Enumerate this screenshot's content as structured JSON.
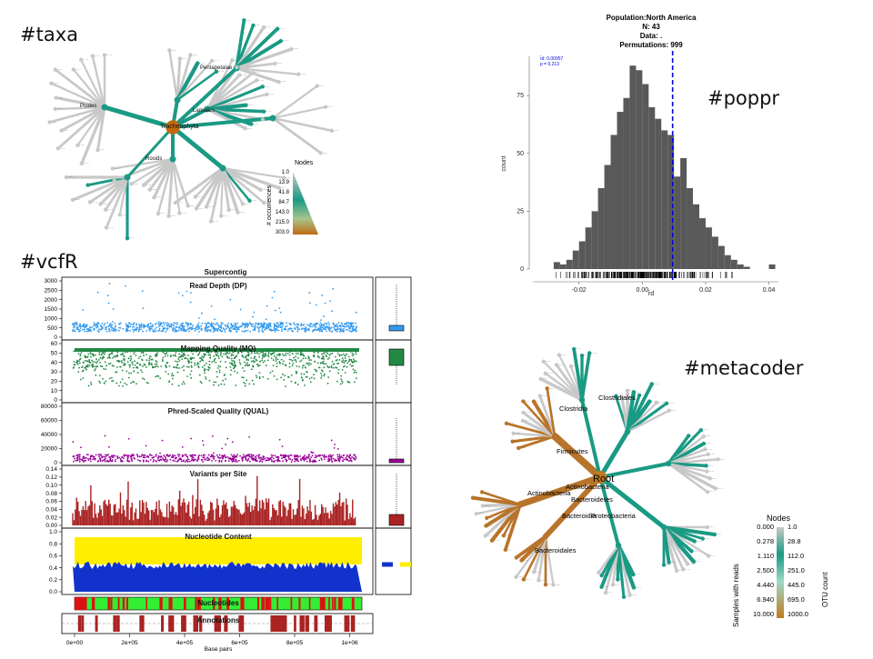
{
  "colors": {
    "taxa_low": "#c8c8c8",
    "taxa_mid": "#1a9a84",
    "taxa_high": "#c06a10",
    "hist_bar": "#595959",
    "hist_line": "#0000dd",
    "depth": "#3399ee",
    "mq": "#228844",
    "qual": "#990099",
    "vps": "#aa2222",
    "nuc_yellow": "#ffee00",
    "nuc_blue": "#1133cc",
    "nuc_green": "#33ee33",
    "nuc_red": "#dd1111",
    "annot": "#aa2222"
  },
  "tags": {
    "taxa": "#taxa",
    "vcfr": "#vcfR",
    "poppr": "#poppr",
    "metacoder": "#metacoder"
  },
  "taxa": {
    "root_label": "Tracheophyta",
    "labels": [
      "Lamiales",
      "Rosids",
      "Pentapetalae",
      "Poales"
    ],
    "legend": {
      "title": "Nodes",
      "axis_label": "# occurrences",
      "ticks": [
        "1.0",
        "13.9",
        "41.8",
        "84.7",
        "143.0",
        "215.0",
        "303.0"
      ]
    }
  },
  "poppr": {
    "title_lines": [
      "Population:North America",
      "N: 43",
      "Data: .",
      "Permutations: 999"
    ],
    "stats": [
      "r̄d: 0.00957",
      "p = 0.213"
    ],
    "x_label": "r̄d",
    "y_label": "count"
  },
  "metacoder": {
    "labels": {
      "root": "Root",
      "clades": [
        "Firmicutes",
        "Actinobacteria",
        "Bacteroidetes",
        "Proteobacteria",
        "Bacteroidia",
        "Clostridia",
        "Clostridiales",
        "Bacteroidales",
        "Actinobacteria"
      ]
    },
    "legend": {
      "title": "Nodes",
      "left_label": "Samples with reads",
      "right_label": "OTU count",
      "left_ticks": [
        "0.000",
        "0.278",
        "1.110",
        "2.500",
        "4.440",
        "6.940",
        "10.000"
      ],
      "right_ticks": [
        "1.0",
        "28.8",
        "112.0",
        "251.0",
        "445.0",
        "695.0",
        "1000.0"
      ]
    }
  },
  "chart_data": [
    {
      "type": "histogram",
      "name": "poppr-index-of-association",
      "title": "Population:North America",
      "subtitle": [
        "N: 43",
        "Data: .",
        "Permutations: 999"
      ],
      "xlabel": "r̄d",
      "ylabel": "count",
      "xlim": [
        -0.034,
        0.043
      ],
      "ylim": [
        0,
        92
      ],
      "x_ticks": [
        "-0.02",
        "0.00",
        "0.02",
        "0.04"
      ],
      "x_tick_values": [
        -0.02,
        0.0,
        0.02,
        0.04
      ],
      "y_ticks": [
        "0",
        "25",
        "50",
        "75"
      ],
      "y_tick_values": [
        0,
        25,
        50,
        75
      ],
      "bin_width": 0.002,
      "bin_starts": [
        -0.028,
        -0.026,
        -0.024,
        -0.022,
        -0.02,
        -0.018,
        -0.016,
        -0.014,
        -0.012,
        -0.01,
        -0.008,
        -0.006,
        -0.004,
        -0.002,
        0.0,
        0.002,
        0.004,
        0.006,
        0.008,
        0.01,
        0.012,
        0.014,
        0.016,
        0.018,
        0.02,
        0.022,
        0.024,
        0.026,
        0.028,
        0.03,
        0.032,
        0.034,
        0.036,
        0.038,
        0.04
      ],
      "counts": [
        3,
        2,
        4,
        8,
        12,
        18,
        25,
        35,
        45,
        58,
        68,
        74,
        88,
        86,
        80,
        70,
        65,
        60,
        58,
        40,
        48,
        35,
        28,
        22,
        18,
        14,
        10,
        6,
        4,
        2,
        1,
        0,
        0,
        0,
        2
      ],
      "observed_value": 0.00957,
      "observed_p": 0.213
    },
    {
      "type": "scatter",
      "name": "vcfr-read-depth",
      "title": "Read Depth (DP)",
      "xlabel": "Base pairs",
      "ylim": [
        0,
        3000
      ],
      "y_ticks": [
        "0",
        "500",
        "1000",
        "1500",
        "2000",
        "2500",
        "3000"
      ],
      "x_ticks": [
        "0e+00",
        "2e+05",
        "4e+05",
        "6e+05",
        "8e+05",
        "1e+06"
      ]
    },
    {
      "type": "scatter",
      "name": "vcfr-mapping-quality",
      "title": "Mapping Quality (MQ)",
      "ylim": [
        0,
        60
      ],
      "y_ticks": [
        "0",
        "10",
        "20",
        "30",
        "40",
        "50",
        "60"
      ]
    },
    {
      "type": "scatter",
      "name": "vcfr-phred-quality",
      "title": "Phred-Scaled Quality (QUAL)",
      "ylim": [
        0,
        80000
      ],
      "y_ticks": [
        "0",
        "20000",
        "40000",
        "60000",
        "80000"
      ]
    },
    {
      "type": "bar",
      "name": "vcfr-variants-per-site",
      "title": "Variants per Site",
      "ylim": [
        0,
        0.14
      ],
      "y_ticks": [
        "0.00",
        "0.02",
        "0.04",
        "0.06",
        "0.08",
        "0.10",
        "0.12",
        "0.14"
      ]
    },
    {
      "type": "area",
      "name": "vcfr-nucleotide-content",
      "title": "Nucleotide Content",
      "ylim": [
        0,
        1
      ],
      "y_ticks": [
        "0.0",
        "0.2",
        "0.4",
        "0.6",
        "0.8",
        "1.0"
      ]
    },
    {
      "type": "bar",
      "name": "vcfr-nucleotides",
      "title": "Nucleotides"
    },
    {
      "type": "bar",
      "name": "vcfr-annotations",
      "title": "Annotations",
      "suptitle": "Supercontig"
    }
  ]
}
